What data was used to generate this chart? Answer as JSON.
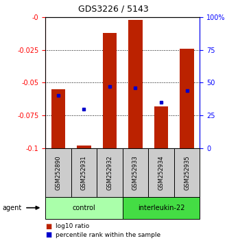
{
  "title": "GDS3226 / 5143",
  "samples": [
    "GSM252890",
    "GSM252931",
    "GSM252932",
    "GSM252933",
    "GSM252934",
    "GSM252935"
  ],
  "log10_ratio": [
    -0.055,
    -0.098,
    -0.012,
    -0.002,
    -0.068,
    -0.024
  ],
  "percentile_rank": [
    40,
    30,
    47,
    46,
    35,
    44
  ],
  "bar_color": "#bb2200",
  "blue_color": "#0000cc",
  "ylim_left": [
    -0.1,
    0
  ],
  "ylim_right": [
    0,
    100
  ],
  "yticks_left": [
    0,
    -0.025,
    -0.05,
    -0.075,
    -0.1
  ],
  "ytick_labels_left": [
    "-0",
    "-0.025",
    "-0.05",
    "-0.075",
    "-0.1"
  ],
  "yticks_right": [
    0,
    25,
    50,
    75,
    100
  ],
  "ytick_labels_right": [
    "0",
    "25",
    "50",
    "75",
    "100%"
  ],
  "groups": [
    {
      "label": "control",
      "color": "#aaffaa"
    },
    {
      "label": "interleukin-22",
      "color": "#44dd44"
    }
  ],
  "group_ranges": [
    [
      0,
      2
    ],
    [
      3,
      5
    ]
  ],
  "bar_width": 0.55,
  "legend_labels": [
    "log10 ratio",
    "percentile rank within the sample"
  ],
  "agent_label": "agent"
}
